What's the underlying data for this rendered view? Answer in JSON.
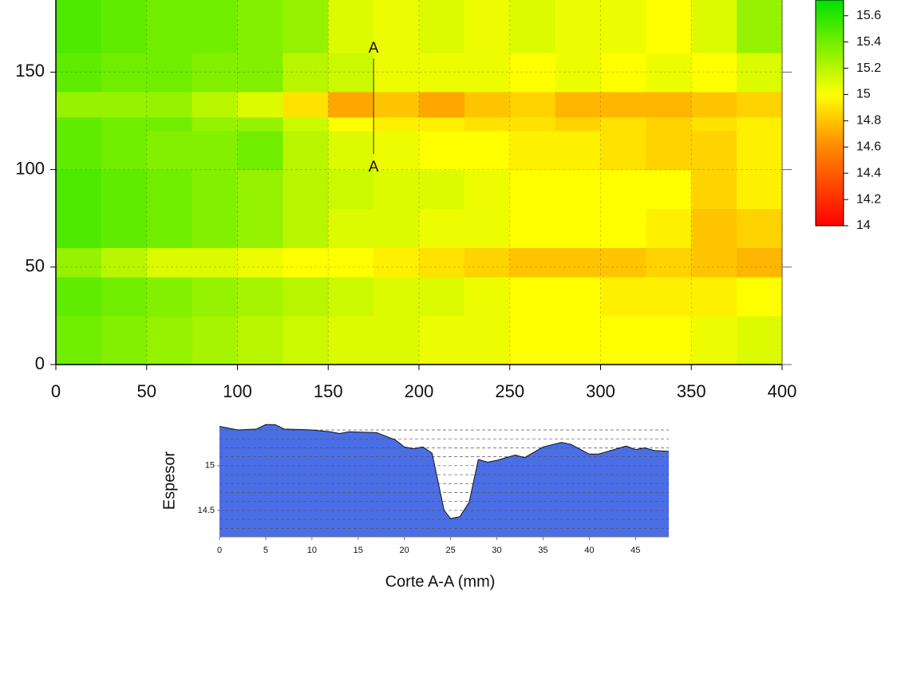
{
  "chart_data": [
    {
      "type": "heatmap",
      "xlim": [
        0,
        400
      ],
      "ylim": [
        0,
        187
      ],
      "xticks": [
        0,
        50,
        100,
        150,
        200,
        250,
        300,
        350,
        400
      ],
      "yticks": [
        0,
        50,
        100,
        150
      ],
      "grid": true,
      "xbins": [
        0,
        25,
        50,
        75,
        100,
        125,
        150,
        175,
        200,
        225,
        250,
        275,
        300,
        325,
        350,
        375,
        400
      ],
      "ybins": [
        0,
        25,
        45,
        60,
        80,
        100,
        120,
        127,
        140,
        160,
        187
      ],
      "z": [
        [
          15.4,
          15.35,
          15.3,
          15.25,
          15.2,
          15.15,
          15.1,
          15.1,
          15.05,
          15.05,
          15.0,
          15.0,
          15.0,
          15.0,
          15.05,
          15.1
        ],
        [
          15.45,
          15.4,
          15.35,
          15.3,
          15.25,
          15.2,
          15.15,
          15.1,
          15.1,
          15.05,
          15.0,
          15.0,
          14.95,
          14.95,
          14.95,
          15.0
        ],
        [
          15.3,
          15.2,
          15.1,
          15.1,
          15.05,
          15.0,
          15.0,
          14.95,
          14.9,
          14.85,
          14.8,
          14.8,
          14.8,
          14.85,
          14.8,
          14.75
        ],
        [
          15.5,
          15.45,
          15.4,
          15.35,
          15.3,
          15.2,
          15.1,
          15.1,
          15.05,
          15.05,
          15.0,
          15.0,
          15.0,
          14.95,
          14.8,
          14.85
        ],
        [
          15.5,
          15.45,
          15.4,
          15.35,
          15.3,
          15.2,
          15.15,
          15.1,
          15.1,
          15.05,
          15.0,
          15.0,
          15.0,
          15.0,
          14.85,
          14.95
        ],
        [
          15.45,
          15.4,
          15.35,
          15.35,
          15.4,
          15.2,
          15.1,
          15.05,
          15.0,
          15.0,
          14.95,
          14.95,
          14.9,
          14.85,
          14.85,
          14.95
        ],
        [
          15.45,
          15.4,
          15.4,
          15.3,
          15.3,
          15.15,
          15.0,
          14.95,
          14.95,
          14.9,
          14.9,
          14.85,
          14.9,
          14.85,
          14.9,
          14.95
        ],
        [
          15.3,
          15.3,
          15.3,
          15.2,
          15.1,
          14.9,
          14.7,
          14.8,
          14.7,
          14.8,
          14.85,
          14.75,
          14.75,
          14.75,
          14.8,
          14.85
        ],
        [
          15.45,
          15.4,
          15.4,
          15.35,
          15.35,
          15.2,
          15.15,
          15.05,
          15.05,
          15.05,
          15.0,
          15.05,
          15.0,
          15.05,
          15.0,
          15.1
        ],
        [
          15.5,
          15.45,
          15.4,
          15.4,
          15.35,
          15.3,
          15.1,
          15.05,
          15.1,
          15.05,
          15.1,
          15.05,
          15.05,
          15.0,
          15.1,
          15.3
        ]
      ],
      "clim": [
        14,
        15.72
      ],
      "colorscale": [
        {
          "value": 14,
          "color": "#ff0000"
        },
        {
          "value": 14.6,
          "color": "#ff8a00"
        },
        {
          "value": 15,
          "color": "#ffff00"
        },
        {
          "value": 15.72,
          "color": "#00e000"
        }
      ],
      "cticks": [
        14,
        14.2,
        14.4,
        14.6,
        14.8,
        15,
        15.2,
        15.4,
        15.6
      ],
      "annotations": [
        {
          "text": "A",
          "x": 175,
          "y": 162
        },
        {
          "text": "A",
          "x": 175,
          "y": 101
        }
      ],
      "section_line": {
        "x": 175,
        "y": [
          108,
          157
        ]
      }
    },
    {
      "type": "area",
      "xlabel": "Corte A-A (mm)",
      "ylabel": "Espesor",
      "x": [
        0,
        2,
        4,
        5,
        6,
        7,
        10,
        12,
        13,
        14,
        17,
        19,
        20,
        21,
        22,
        23,
        24.3,
        25,
        26,
        27,
        28,
        29,
        30,
        32,
        33,
        35,
        37,
        38,
        40,
        41,
        43,
        44,
        45,
        46,
        47,
        48.6
      ],
      "values": [
        15.44,
        15.4,
        15.41,
        15.46,
        15.46,
        15.41,
        15.4,
        15.38,
        15.36,
        15.38,
        15.37,
        15.29,
        15.21,
        15.19,
        15.21,
        15.14,
        14.5,
        14.41,
        14.43,
        14.59,
        15.07,
        15.04,
        15.06,
        15.12,
        15.09,
        15.21,
        15.26,
        15.24,
        15.13,
        15.13,
        15.19,
        15.22,
        15.18,
        15.2,
        15.17,
        15.16
      ],
      "color": "#4a6ee6",
      "xlim": [
        0,
        48.6
      ],
      "ylim": [
        14.205,
        15.48
      ],
      "xticks": [
        0,
        5,
        10,
        15,
        20,
        25,
        30,
        35,
        40,
        45
      ],
      "yticks": [
        14.5,
        15
      ],
      "ygrid": [
        14.3,
        14.4,
        14.5,
        14.6,
        14.7,
        14.8,
        14.9,
        15,
        15.1,
        15.2,
        15.3,
        15.4
      ]
    }
  ]
}
